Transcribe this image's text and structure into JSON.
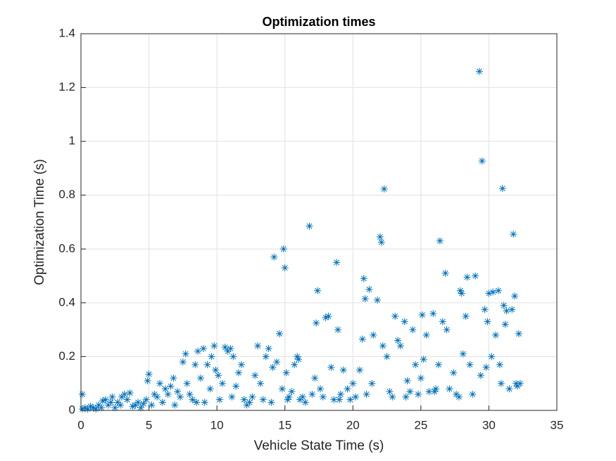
{
  "chart_data": {
    "type": "scatter",
    "title": "Optimization times",
    "x_label": "Vehicle State Time (s)",
    "y_label": "Optimization Time (s)",
    "color": "#0072bd",
    "marker": "*",
    "grid": true,
    "xlim": [
      0,
      35
    ],
    "xticks": [
      0,
      5,
      10,
      15,
      20,
      25,
      30,
      35
    ],
    "ylim": [
      0,
      1.4
    ],
    "yticks": [
      0,
      0.2,
      0.4,
      0.6,
      0.8,
      1,
      1.2,
      1.4
    ],
    "x": [
      0.1,
      0.1,
      0.3,
      0.5,
      0.7,
      0.9,
      1.1,
      1.3,
      1.5,
      1.6,
      1.8,
      2.0,
      2.2,
      2.3,
      2.5,
      2.7,
      2.9,
      3.0,
      3.2,
      3.4,
      3.6,
      3.8,
      4.0,
      4.2,
      4.4,
      4.6,
      4.8,
      4.9,
      5.0,
      5.2,
      5.4,
      5.6,
      5.8,
      6.0,
      6.2,
      6.4,
      6.6,
      6.8,
      6.9,
      7.1,
      7.3,
      7.5,
      7.7,
      7.8,
      8.0,
      8.2,
      8.4,
      8.5,
      8.6,
      8.8,
      9.0,
      9.1,
      9.3,
      9.5,
      9.6,
      9.8,
      9.9,
      10.1,
      10.2,
      10.4,
      10.6,
      10.8,
      11.0,
      11.1,
      11.2,
      11.4,
      11.6,
      11.8,
      12.0,
      12.2,
      12.4,
      12.6,
      12.8,
      13.0,
      13.2,
      13.4,
      13.6,
      13.8,
      14.0,
      14.1,
      14.2,
      14.4,
      14.6,
      14.8,
      14.9,
      15.0,
      15.1,
      15.3,
      15.5,
      15.7,
      15.9,
      16.1,
      16.3,
      16.5,
      16.8,
      17.0,
      17.2,
      17.3,
      17.4,
      17.6,
      18.0,
      18.2,
      18.4,
      18.6,
      18.8,
      18.9,
      19.1,
      19.3,
      19.6,
      19.8,
      20.0,
      20.2,
      20.5,
      20.7,
      20.8,
      20.9,
      21.2,
      21.4,
      21.5,
      21.8,
      22.0,
      22.1,
      22.2,
      22.3,
      22.5,
      22.7,
      22.9,
      23.1,
      23.3,
      23.5,
      23.8,
      24.0,
      24.2,
      24.4,
      24.6,
      24.8,
      25.1,
      25.2,
      25.4,
      25.6,
      25.9,
      26.1,
      26.3,
      26.4,
      26.6,
      26.8,
      26.9,
      27.1,
      27.4,
      27.6,
      27.9,
      28.0,
      28.1,
      28.3,
      28.4,
      28.6,
      28.8,
      29.0,
      29.3,
      29.4,
      29.5,
      29.7,
      29.8,
      29.9,
      30.0,
      30.2,
      30.3,
      30.5,
      30.7,
      30.8,
      31.0,
      31.1,
      31.2,
      31.3,
      31.5,
      31.7,
      31.8,
      31.9,
      32.0,
      32.2,
      32.3,
      32.1,
      30.9,
      27.8,
      26.0,
      25.0,
      23.9,
      21.0,
      19.0,
      17.8,
      16.0,
      15.2
    ],
    "values": [
      0.06,
      0.005,
      0.01,
      0.005,
      0.015,
      0.01,
      0.005,
      0.02,
      0.01,
      0.035,
      0.04,
      0.02,
      0.03,
      0.05,
      0.01,
      0.03,
      0.02,
      0.05,
      0.06,
      0.04,
      0.065,
      0.015,
      0.02,
      0.03,
      0.01,
      0.025,
      0.04,
      0.11,
      0.135,
      0.02,
      0.06,
      0.05,
      0.1,
      0.03,
      0.08,
      0.06,
      0.09,
      0.12,
      0.02,
      0.07,
      0.05,
      0.18,
      0.21,
      0.1,
      0.06,
      0.04,
      0.17,
      0.03,
      0.22,
      0.12,
      0.23,
      0.03,
      0.17,
      0.08,
      0.2,
      0.24,
      0.15,
      0.13,
      0.04,
      0.1,
      0.235,
      0.22,
      0.23,
      0.05,
      0.2,
      0.09,
      0.14,
      0.17,
      0.04,
      0.02,
      0.03,
      0.05,
      0.13,
      0.24,
      0.1,
      0.04,
      0.2,
      0.23,
      0.03,
      0.16,
      0.57,
      0.18,
      0.285,
      0.08,
      0.6,
      0.53,
      0.14,
      0.05,
      0.07,
      0.17,
      0.2,
      0.04,
      0.05,
      0.03,
      0.685,
      0.06,
      0.12,
      0.325,
      0.445,
      0.08,
      0.345,
      0.35,
      0.16,
      0.04,
      0.55,
      0.3,
      0.06,
      0.15,
      0.08,
      0.04,
      0.1,
      0.05,
      0.15,
      0.265,
      0.49,
      0.415,
      0.45,
      0.1,
      0.28,
      0.41,
      0.645,
      0.625,
      0.24,
      0.823,
      0.2,
      0.07,
      0.05,
      0.35,
      0.26,
      0.24,
      0.33,
      0.11,
      0.07,
      0.3,
      0.17,
      0.06,
      0.355,
      0.19,
      0.28,
      0.07,
      0.36,
      0.08,
      0.17,
      0.63,
      0.33,
      0.51,
      0.3,
      0.08,
      0.14,
      0.06,
      0.445,
      0.435,
      0.21,
      0.35,
      0.495,
      0.17,
      0.06,
      0.5,
      1.26,
      0.13,
      0.927,
      0.375,
      0.16,
      0.33,
      0.435,
      0.2,
      0.44,
      0.28,
      0.445,
      0.17,
      0.825,
      0.39,
      0.32,
      0.37,
      0.08,
      0.375,
      0.655,
      0.425,
      0.1,
      0.285,
      0.1,
      0.09,
      0.1,
      0.05,
      0.07,
      0.12,
      0.05,
      0.06,
      0.04,
      0.05,
      0.19,
      0.04
    ]
  }
}
